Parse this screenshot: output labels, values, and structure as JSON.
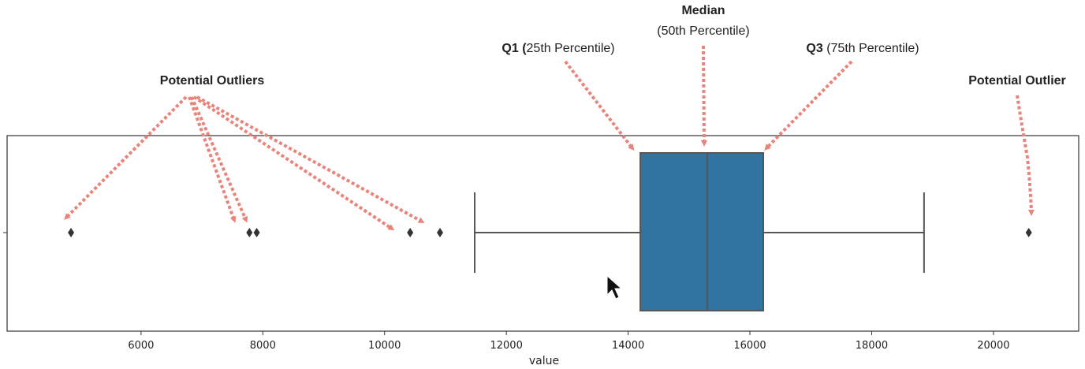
{
  "chart_data": {
    "type": "box",
    "xlabel": "value",
    "xlim": [
      3800,
      21400
    ],
    "xticks": [
      6000,
      8000,
      10000,
      12000,
      14000,
      16000,
      18000,
      20000
    ],
    "tick_labels": [
      "6000",
      "8000",
      "10000",
      "12000",
      "14000",
      "16000",
      "18000",
      "20000"
    ],
    "box": {
      "whisker_low": 11480,
      "q1": 14200,
      "median": 15300,
      "q3": 16220,
      "whisker_high": 18860
    },
    "outliers": [
      4850,
      7780,
      7900,
      10420,
      10910,
      20580
    ],
    "colors": {
      "box_fill": "#3274a1",
      "line": "#555555",
      "arrow": "#e8847a",
      "outlier": "#333333"
    }
  },
  "annotations": {
    "median": {
      "title": "Median",
      "detail": "(50th Percentile)"
    },
    "q1": {
      "bold": "Q1 (",
      "normal": "25th Percentile)"
    },
    "q3": {
      "bold": "Q3",
      "normal": " (75th Percentile)"
    },
    "outliers_left": "Potential Outliers",
    "outlier_right": "Potential Outlier"
  },
  "cursor_icon": "pointer-arrow-icon"
}
